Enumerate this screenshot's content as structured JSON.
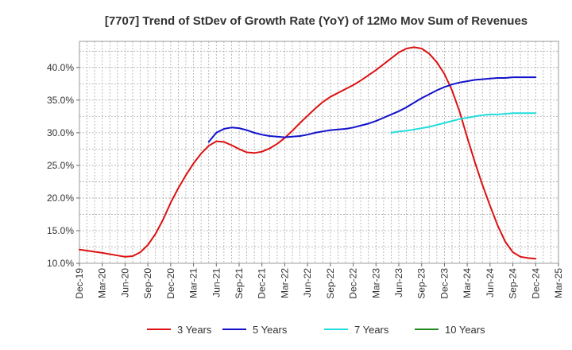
{
  "chart_data": {
    "type": "line",
    "title": "[7707]  Trend of StDev of Growth Rate (YoY) of 12Mo Mov Sum of Revenues",
    "xlabel": "",
    "ylabel": "",
    "ylim": [
      0.1,
      0.44
    ],
    "y_ticks": [
      0.1,
      0.15,
      0.2,
      0.25,
      0.3,
      0.35,
      0.4
    ],
    "y_tick_labels": [
      "10.0%",
      "15.0%",
      "20.0%",
      "25.0%",
      "30.0%",
      "35.0%",
      "40.0%"
    ],
    "x_tick_labels": [
      "Dec-19",
      "Mar-20",
      "Jun-20",
      "Sep-20",
      "Dec-20",
      "Mar-21",
      "Jun-21",
      "Sep-21",
      "Dec-21",
      "Mar-22",
      "Jun-22",
      "Sep-22",
      "Dec-22",
      "Mar-23",
      "Jun-23",
      "Sep-23",
      "Dec-23",
      "Mar-24",
      "Jun-24",
      "Sep-24",
      "Dec-24",
      "Mar-25"
    ],
    "x_month_index_note": "x values are month offsets from Dec-19",
    "grid": true,
    "legend_position": "bottom",
    "series": [
      {
        "name": "3 Years",
        "color": "#dd1111",
        "x": [
          0,
          3,
          5,
          6,
          7,
          8,
          9,
          10,
          11,
          12,
          13,
          14,
          15,
          16,
          17,
          18,
          19,
          20,
          21,
          22,
          23,
          24,
          25,
          26,
          27,
          28,
          29,
          30,
          31,
          32,
          33,
          34,
          35,
          36,
          37,
          38,
          39,
          40,
          41,
          42,
          43,
          44,
          45,
          46,
          47,
          48,
          49,
          50,
          51,
          52,
          53,
          54,
          55,
          56,
          57,
          58,
          59,
          60
        ],
        "values": [
          0.121,
          0.116,
          0.112,
          0.11,
          0.111,
          0.117,
          0.128,
          0.145,
          0.167,
          0.193,
          0.215,
          0.235,
          0.253,
          0.268,
          0.28,
          0.287,
          0.286,
          0.281,
          0.275,
          0.27,
          0.269,
          0.271,
          0.276,
          0.283,
          0.292,
          0.303,
          0.315,
          0.326,
          0.337,
          0.347,
          0.355,
          0.361,
          0.367,
          0.373,
          0.38,
          0.388,
          0.396,
          0.405,
          0.414,
          0.423,
          0.429,
          0.431,
          0.429,
          0.421,
          0.408,
          0.39,
          0.365,
          0.332,
          0.293,
          0.255,
          0.22,
          0.188,
          0.158,
          0.133,
          0.117,
          0.11,
          0.108,
          0.107
        ]
      },
      {
        "name": "5 Years",
        "color": "#1111cc",
        "x": [
          17,
          18,
          19,
          20,
          21,
          22,
          23,
          24,
          25,
          26,
          27,
          28,
          29,
          30,
          31,
          32,
          33,
          34,
          35,
          36,
          37,
          38,
          39,
          40,
          41,
          42,
          43,
          44,
          45,
          46,
          47,
          48,
          49,
          50,
          51,
          52,
          53,
          54,
          55,
          56,
          57,
          58,
          59,
          60
        ],
        "values": [
          0.286,
          0.3,
          0.306,
          0.308,
          0.307,
          0.304,
          0.3,
          0.297,
          0.295,
          0.294,
          0.293,
          0.294,
          0.295,
          0.297,
          0.3,
          0.302,
          0.304,
          0.305,
          0.306,
          0.308,
          0.311,
          0.314,
          0.318,
          0.323,
          0.328,
          0.333,
          0.339,
          0.346,
          0.353,
          0.359,
          0.365,
          0.37,
          0.374,
          0.377,
          0.379,
          0.381,
          0.382,
          0.383,
          0.384,
          0.384,
          0.385,
          0.385,
          0.385,
          0.385
        ]
      },
      {
        "name": "7 Years",
        "color": "#22dddd",
        "x": [
          41,
          42,
          43,
          44,
          45,
          46,
          47,
          48,
          49,
          50,
          51,
          52,
          53,
          54,
          55,
          56,
          57,
          58,
          59,
          60
        ],
        "values": [
          0.3,
          0.302,
          0.303,
          0.305,
          0.307,
          0.309,
          0.312,
          0.315,
          0.318,
          0.321,
          0.323,
          0.325,
          0.327,
          0.328,
          0.328,
          0.329,
          0.33,
          0.33,
          0.33,
          0.33
        ]
      },
      {
        "name": "10 Years",
        "color": "#228822",
        "x": [],
        "values": []
      }
    ]
  }
}
